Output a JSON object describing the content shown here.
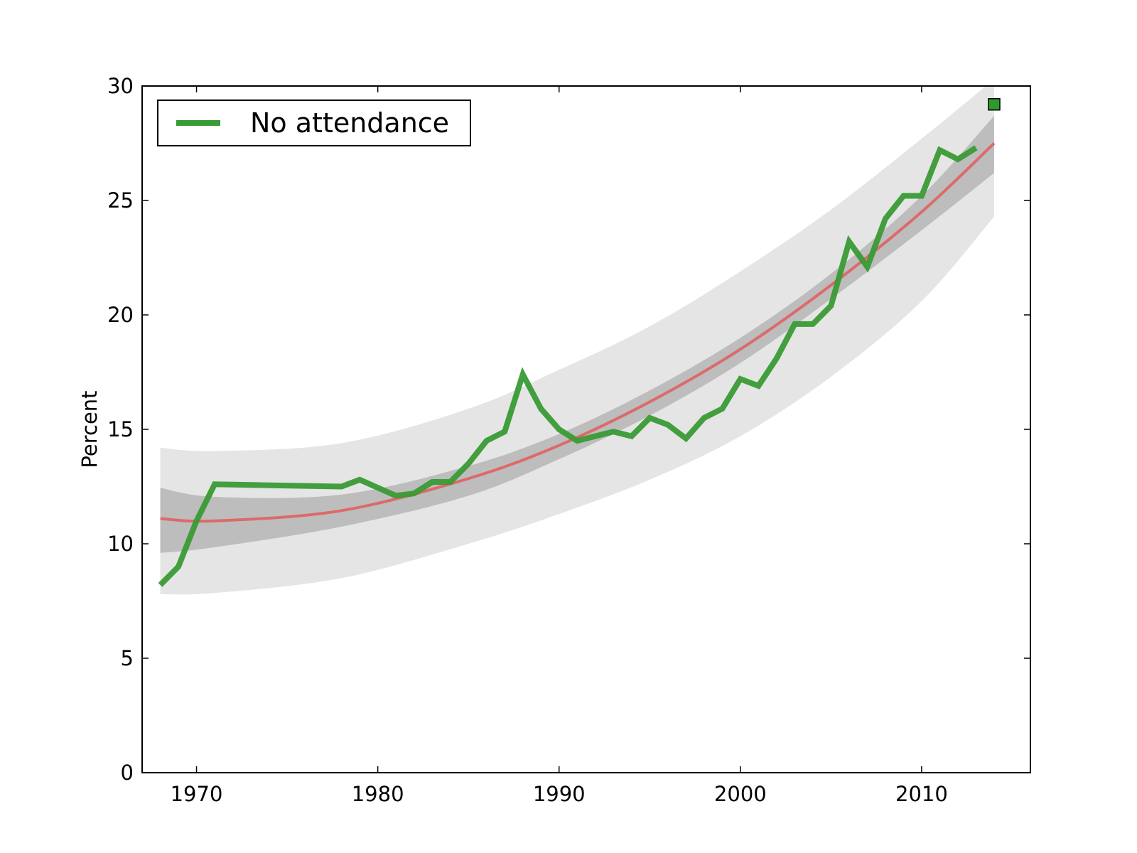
{
  "chart_data": {
    "type": "line",
    "title": "",
    "xlabel": "",
    "ylabel": "Percent",
    "xlim": [
      1967,
      2016
    ],
    "ylim": [
      0,
      30
    ],
    "xticks": [
      1970,
      1980,
      1990,
      2000,
      2010
    ],
    "yticks": [
      0,
      5,
      10,
      15,
      20,
      25,
      30
    ],
    "grid": false,
    "legend": {
      "position": "top-left",
      "entries": [
        "No attendance"
      ]
    },
    "colors": {
      "series": "#3a9a35",
      "fit": "#e06060",
      "inner_band": "#bdbdbd",
      "outer_band": "#e5e5e5",
      "marker": "#2e9a2e"
    },
    "series": [
      {
        "name": "No attendance",
        "x": [
          1968,
          1969,
          1970,
          1971,
          1978,
          1979,
          1980,
          1981,
          1982,
          1983,
          1984,
          1985,
          1986,
          1987,
          1988,
          1989,
          1990,
          1991,
          1992,
          1993,
          1994,
          1995,
          1996,
          1997,
          1998,
          1999,
          2000,
          2001,
          2002,
          2003,
          2004,
          2005,
          2006,
          2007,
          2008,
          2009,
          2010,
          2011,
          2012,
          2013
        ],
        "y": [
          8.2,
          9.0,
          11.0,
          12.6,
          12.5,
          12.8,
          12.45,
          12.1,
          12.2,
          12.7,
          12.7,
          13.5,
          14.5,
          14.9,
          17.4,
          15.9,
          15.0,
          14.5,
          14.7,
          14.9,
          14.7,
          15.5,
          15.2,
          14.6,
          15.5,
          15.9,
          17.2,
          16.9,
          18.1,
          19.6,
          19.6,
          20.4,
          23.2,
          22.1,
          24.2,
          25.2,
          25.2,
          27.2,
          26.8,
          27.3
        ]
      }
    ],
    "fit": {
      "x": [
        1968,
        1971,
        1978,
        1985,
        1990,
        1995,
        2000,
        2005,
        2010,
        2014
      ],
      "y": [
        11.1,
        11.0,
        11.45,
        12.85,
        14.3,
        16.2,
        18.5,
        21.3,
        24.5,
        27.5
      ]
    },
    "band_inner": {
      "x": [
        1968,
        1971,
        1978,
        1985,
        1990,
        1995,
        2000,
        2005,
        2010,
        2014
      ],
      "upper": [
        12.45,
        12.05,
        12.15,
        13.4,
        14.8,
        16.7,
        19.0,
        21.8,
        25.2,
        28.7
      ],
      "lower": [
        9.6,
        9.85,
        10.75,
        12.1,
        13.7,
        15.6,
        17.9,
        20.7,
        23.7,
        26.2
      ]
    },
    "band_outer": {
      "x": [
        1968,
        1971,
        1978,
        1985,
        1990,
        1995,
        2000,
        2005,
        2010,
        2014
      ],
      "upper": [
        14.2,
        14.05,
        14.4,
        15.9,
        17.6,
        19.5,
        21.9,
        24.6,
        27.7,
        30.3
      ],
      "lower": [
        7.8,
        7.85,
        8.5,
        10.0,
        11.3,
        12.8,
        14.7,
        17.3,
        20.6,
        24.3
      ]
    },
    "marker": {
      "x": 2014,
      "y": 29.2,
      "shape": "square"
    }
  }
}
